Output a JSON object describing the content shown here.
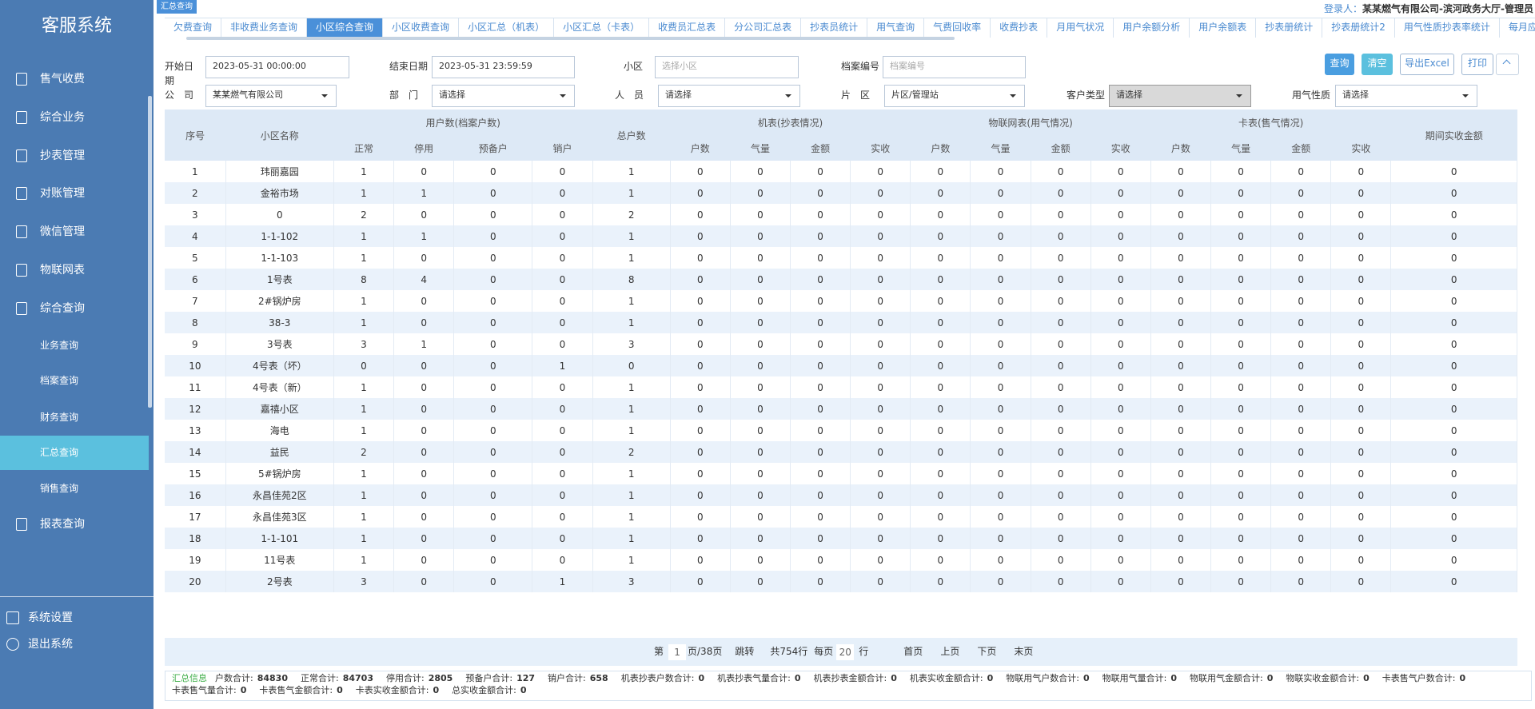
{
  "app": {
    "title": "客服系统",
    "tag": "汇总查询",
    "login_label": "登录人：",
    "login_user": "某某燃气有限公司-滨河政务大厅-管理员"
  },
  "menu": [
    "售气收费",
    "综合业务",
    "抄表管理",
    "对账管理",
    "微信管理",
    "物联网表",
    "综合查询"
  ],
  "submenu": [
    {
      "label": "业务查询"
    },
    {
      "label": "档案查询"
    },
    {
      "label": "财务查询"
    },
    {
      "label": "汇总查询",
      "active": true
    },
    {
      "label": "销售查询"
    }
  ],
  "menu_after": [
    "报表查询"
  ],
  "bottom_menu": [
    "系统设置",
    "退出系统"
  ],
  "tabs": [
    {
      "label": "欠费查询"
    },
    {
      "label": "非收费业务查询"
    },
    {
      "label": "小区综合查询",
      "active": true
    },
    {
      "label": "小区收费查询"
    },
    {
      "label": "小区汇总（机表）"
    },
    {
      "label": "小区汇总（卡表）"
    },
    {
      "label": "收费员汇总表"
    },
    {
      "label": "分公司汇总表"
    },
    {
      "label": "抄表员统计"
    },
    {
      "label": "用气查询"
    },
    {
      "label": "气费回收率"
    },
    {
      "label": "收费抄表"
    },
    {
      "label": "月用气状况"
    },
    {
      "label": "用户余额分析"
    },
    {
      "label": "用户余额表"
    },
    {
      "label": "抄表册统计"
    },
    {
      "label": "抄表册统计2"
    },
    {
      "label": "用气性质抄表率统计"
    },
    {
      "label": "每月应收汇总统"
    }
  ],
  "filters": [
    {
      "label": "开始日期",
      "value": "2023-05-31 00:00:00"
    },
    {
      "label": "结束日期",
      "value": "2023-05-31 23:59:59"
    },
    {
      "label": "小区",
      "placeholder": "选择小区"
    },
    {
      "label": "档案编号",
      "placeholder": "档案编号"
    },
    {
      "label": "公　司",
      "value": "某某燃气有限公司",
      "select": true
    },
    {
      "label": "部　门",
      "value": "请选择",
      "select": true
    },
    {
      "label": "人　员",
      "value": "请选择",
      "select": true
    },
    {
      "label": "片　区",
      "value": "片区/管理站",
      "select": true
    },
    {
      "label": "客户类型",
      "value": "请选择",
      "select": true,
      "disabled": true
    },
    {
      "label": "用气性质",
      "value": "请选择",
      "select": true
    }
  ],
  "buttons": [
    "查询",
    "清空",
    "导出Excel",
    "打印"
  ],
  "table": {
    "groups": [
      "序号",
      "小区名称",
      "用户数(档案户数)",
      "总户数",
      "机表(抄表情况)",
      "物联网表(用气情况)",
      "卡表(售气情况)",
      "期间实收金额"
    ],
    "subheaders": [
      [
        "正常",
        "停用",
        "预备户",
        "销户"
      ],
      [
        "户数",
        "气量",
        "金额",
        "实收"
      ],
      [
        "户数",
        "气量",
        "金额",
        "实收"
      ],
      [
        "户数",
        "气量",
        "金额",
        "实收"
      ]
    ],
    "rows": [
      [
        1,
        "玮丽嘉园",
        1,
        0,
        0,
        0,
        1,
        0,
        0,
        0,
        0,
        0,
        0,
        0,
        0,
        0,
        0,
        0,
        0,
        0
      ],
      [
        2,
        "金裕市场",
        1,
        1,
        0,
        0,
        1,
        0,
        0,
        0,
        0,
        0,
        0,
        0,
        0,
        0,
        0,
        0,
        0,
        0
      ],
      [
        3,
        "0",
        2,
        0,
        0,
        0,
        2,
        0,
        0,
        0,
        0,
        0,
        0,
        0,
        0,
        0,
        0,
        0,
        0,
        0
      ],
      [
        4,
        "1-1-102",
        1,
        1,
        0,
        0,
        1,
        0,
        0,
        0,
        0,
        0,
        0,
        0,
        0,
        0,
        0,
        0,
        0,
        0
      ],
      [
        5,
        "1-1-103",
        1,
        0,
        0,
        0,
        1,
        0,
        0,
        0,
        0,
        0,
        0,
        0,
        0,
        0,
        0,
        0,
        0,
        0
      ],
      [
        6,
        "1号表",
        8,
        4,
        0,
        0,
        8,
        0,
        0,
        0,
        0,
        0,
        0,
        0,
        0,
        0,
        0,
        0,
        0,
        0
      ],
      [
        7,
        "2#锅炉房",
        1,
        0,
        0,
        0,
        1,
        0,
        0,
        0,
        0,
        0,
        0,
        0,
        0,
        0,
        0,
        0,
        0,
        0
      ],
      [
        8,
        "38-3",
        1,
        0,
        0,
        0,
        1,
        0,
        0,
        0,
        0,
        0,
        0,
        0,
        0,
        0,
        0,
        0,
        0,
        0
      ],
      [
        9,
        "3号表",
        3,
        1,
        0,
        0,
        3,
        0,
        0,
        0,
        0,
        0,
        0,
        0,
        0,
        0,
        0,
        0,
        0,
        0
      ],
      [
        10,
        "4号表（坏）",
        0,
        0,
        0,
        1,
        0,
        0,
        0,
        0,
        0,
        0,
        0,
        0,
        0,
        0,
        0,
        0,
        0,
        0
      ],
      [
        11,
        "4号表（新）",
        1,
        0,
        0,
        0,
        1,
        0,
        0,
        0,
        0,
        0,
        0,
        0,
        0,
        0,
        0,
        0,
        0,
        0
      ],
      [
        12,
        "嘉禧小区",
        1,
        0,
        0,
        0,
        1,
        0,
        0,
        0,
        0,
        0,
        0,
        0,
        0,
        0,
        0,
        0,
        0,
        0
      ],
      [
        13,
        "海电",
        1,
        0,
        0,
        0,
        1,
        0,
        0,
        0,
        0,
        0,
        0,
        0,
        0,
        0,
        0,
        0,
        0,
        0
      ],
      [
        14,
        "益民",
        2,
        0,
        0,
        0,
        2,
        0,
        0,
        0,
        0,
        0,
        0,
        0,
        0,
        0,
        0,
        0,
        0,
        0
      ],
      [
        15,
        "5#锅炉房",
        1,
        0,
        0,
        0,
        1,
        0,
        0,
        0,
        0,
        0,
        0,
        0,
        0,
        0,
        0,
        0,
        0,
        0
      ],
      [
        16,
        "永昌佳苑2区",
        1,
        0,
        0,
        0,
        1,
        0,
        0,
        0,
        0,
        0,
        0,
        0,
        0,
        0,
        0,
        0,
        0,
        0
      ],
      [
        17,
        "永昌佳苑3区",
        1,
        0,
        0,
        0,
        1,
        0,
        0,
        0,
        0,
        0,
        0,
        0,
        0,
        0,
        0,
        0,
        0,
        0
      ],
      [
        18,
        "1-1-101",
        1,
        0,
        0,
        0,
        1,
        0,
        0,
        0,
        0,
        0,
        0,
        0,
        0,
        0,
        0,
        0,
        0,
        0
      ],
      [
        19,
        "11号表",
        1,
        0,
        0,
        0,
        1,
        0,
        0,
        0,
        0,
        0,
        0,
        0,
        0,
        0,
        0,
        0,
        0,
        0
      ],
      [
        20,
        "2号表",
        3,
        0,
        0,
        1,
        3,
        0,
        0,
        0,
        0,
        0,
        0,
        0,
        0,
        0,
        0,
        0,
        0,
        0
      ]
    ]
  },
  "pagination": {
    "prefix": "第",
    "page": 1,
    "pages": "页/38页",
    "jump": "跳转",
    "total": "共754行",
    "per_page_label": "每页",
    "per_page": 20,
    "unit": "行",
    "nav": [
      "首页",
      "上页",
      "下页",
      "末页"
    ]
  },
  "summary": {
    "title": "汇总信息",
    "lines": [
      [
        {
          "label": "户数合计:",
          "value": 84830
        },
        {
          "label": "正常合计:",
          "value": 84703
        },
        {
          "label": "停用合计:",
          "value": 2805
        },
        {
          "label": "预备户合计:",
          "value": 127
        },
        {
          "label": "销户合计:",
          "value": 658
        },
        {
          "label": "机表抄表户数合计:",
          "value": 0
        },
        {
          "label": "机表抄表气量合计:",
          "value": 0
        },
        {
          "label": "机表抄表金额合计:",
          "value": 0
        },
        {
          "label": "机表实收金额合计:",
          "value": 0
        },
        {
          "label": "物联用气户数合计:",
          "value": 0
        },
        {
          "label": "物联用气量合计:",
          "value": 0
        },
        {
          "label": "物联用气金额合计:",
          "value": 0
        },
        {
          "label": "物联实收金额合计:",
          "value": 0
        },
        {
          "label": "卡表售气户数合计:",
          "value": 0
        }
      ],
      [
        {
          "label": "卡表售气量合计:",
          "value": 0
        },
        {
          "label": "卡表售气金额合计:",
          "value": 0
        },
        {
          "label": "卡表实收金额合计:",
          "value": 0
        },
        {
          "label": "总实收金额合计:",
          "value": 0
        }
      ]
    ]
  }
}
